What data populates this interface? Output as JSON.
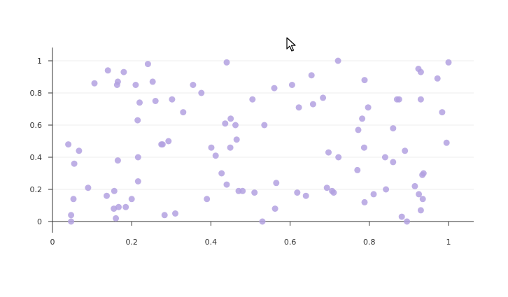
{
  "chart_data": {
    "type": "scatter",
    "title": "",
    "xlabel": "",
    "ylabel": "",
    "xlim": [
      0,
      1.06
    ],
    "ylim": [
      -0.07,
      1.08
    ],
    "x_ticks": [
      "0",
      "0.2",
      "0.4",
      "0.6",
      "0.8",
      "1"
    ],
    "y_ticks": [
      "0",
      "0.2",
      "0.4",
      "0.6",
      "0.8",
      "1"
    ],
    "x_tick_values": [
      0,
      0.2,
      0.4,
      0.6,
      0.8,
      1
    ],
    "y_tick_values": [
      0,
      0.2,
      0.4,
      0.6,
      0.8,
      1
    ],
    "grid": "horizontal",
    "point_color": "#b3a1e0",
    "series": [
      {
        "points": [
          [
            0.04,
            0.48
          ],
          [
            0.047,
            0.04
          ],
          [
            0.047,
            0.0
          ],
          [
            0.053,
            0.14
          ],
          [
            0.055,
            0.36
          ],
          [
            0.067,
            0.44
          ],
          [
            0.09,
            0.21
          ],
          [
            0.106,
            0.86
          ],
          [
            0.137,
            0.16
          ],
          [
            0.14,
            0.94
          ],
          [
            0.155,
            0.08
          ],
          [
            0.156,
            0.19
          ],
          [
            0.16,
            0.02
          ],
          [
            0.163,
            0.85
          ],
          [
            0.165,
            0.87
          ],
          [
            0.165,
            0.38
          ],
          [
            0.167,
            0.09
          ],
          [
            0.18,
            0.93
          ],
          [
            0.185,
            0.09
          ],
          [
            0.2,
            0.14
          ],
          [
            0.21,
            0.85
          ],
          [
            0.215,
            0.63
          ],
          [
            0.216,
            0.4
          ],
          [
            0.216,
            0.25
          ],
          [
            0.22,
            0.74
          ],
          [
            0.241,
            0.98
          ],
          [
            0.253,
            0.87
          ],
          [
            0.26,
            0.75
          ],
          [
            0.275,
            0.48
          ],
          [
            0.278,
            0.48
          ],
          [
            0.283,
            0.04
          ],
          [
            0.293,
            0.5
          ],
          [
            0.302,
            0.76
          ],
          [
            0.31,
            0.05
          ],
          [
            0.33,
            0.68
          ],
          [
            0.355,
            0.85
          ],
          [
            0.376,
            0.8
          ],
          [
            0.39,
            0.14
          ],
          [
            0.401,
            0.46
          ],
          [
            0.412,
            0.41
          ],
          [
            0.427,
            0.3
          ],
          [
            0.436,
            0.61
          ],
          [
            0.44,
            0.23
          ],
          [
            0.44,
            0.99
          ],
          [
            0.449,
            0.46
          ],
          [
            0.45,
            0.64
          ],
          [
            0.462,
            0.6
          ],
          [
            0.465,
            0.51
          ],
          [
            0.47,
            0.19
          ],
          [
            0.48,
            0.19
          ],
          [
            0.505,
            0.76
          ],
          [
            0.51,
            0.18
          ],
          [
            0.53,
            0.0
          ],
          [
            0.535,
            0.6
          ],
          [
            0.56,
            0.83
          ],
          [
            0.562,
            0.08
          ],
          [
            0.565,
            0.24
          ],
          [
            0.605,
            0.85
          ],
          [
            0.618,
            0.18
          ],
          [
            0.622,
            0.71
          ],
          [
            0.64,
            0.16
          ],
          [
            0.654,
            0.91
          ],
          [
            0.658,
            0.73
          ],
          [
            0.683,
            0.77
          ],
          [
            0.693,
            0.21
          ],
          [
            0.697,
            0.43
          ],
          [
            0.706,
            0.19
          ],
          [
            0.71,
            0.18
          ],
          [
            0.721,
            1.0
          ],
          [
            0.722,
            0.4
          ],
          [
            0.77,
            0.32
          ],
          [
            0.772,
            0.57
          ],
          [
            0.782,
            0.64
          ],
          [
            0.787,
            0.46
          ],
          [
            0.788,
            0.12
          ],
          [
            0.788,
            0.88
          ],
          [
            0.797,
            0.71
          ],
          [
            0.811,
            0.17
          ],
          [
            0.84,
            0.4
          ],
          [
            0.842,
            0.2
          ],
          [
            0.86,
            0.58
          ],
          [
            0.86,
            0.37
          ],
          [
            0.87,
            0.76
          ],
          [
            0.875,
            0.76
          ],
          [
            0.882,
            0.03
          ],
          [
            0.89,
            0.44
          ],
          [
            0.895,
            0.0
          ],
          [
            0.915,
            0.22
          ],
          [
            0.924,
            0.95
          ],
          [
            0.925,
            0.17
          ],
          [
            0.93,
            0.07
          ],
          [
            0.93,
            0.76
          ],
          [
            0.93,
            0.93
          ],
          [
            0.934,
            0.29
          ],
          [
            0.935,
            0.14
          ],
          [
            0.937,
            0.3
          ],
          [
            0.972,
            0.89
          ],
          [
            0.984,
            0.68
          ],
          [
            0.995,
            0.49
          ],
          [
            1.0,
            0.99
          ]
        ]
      }
    ]
  }
}
